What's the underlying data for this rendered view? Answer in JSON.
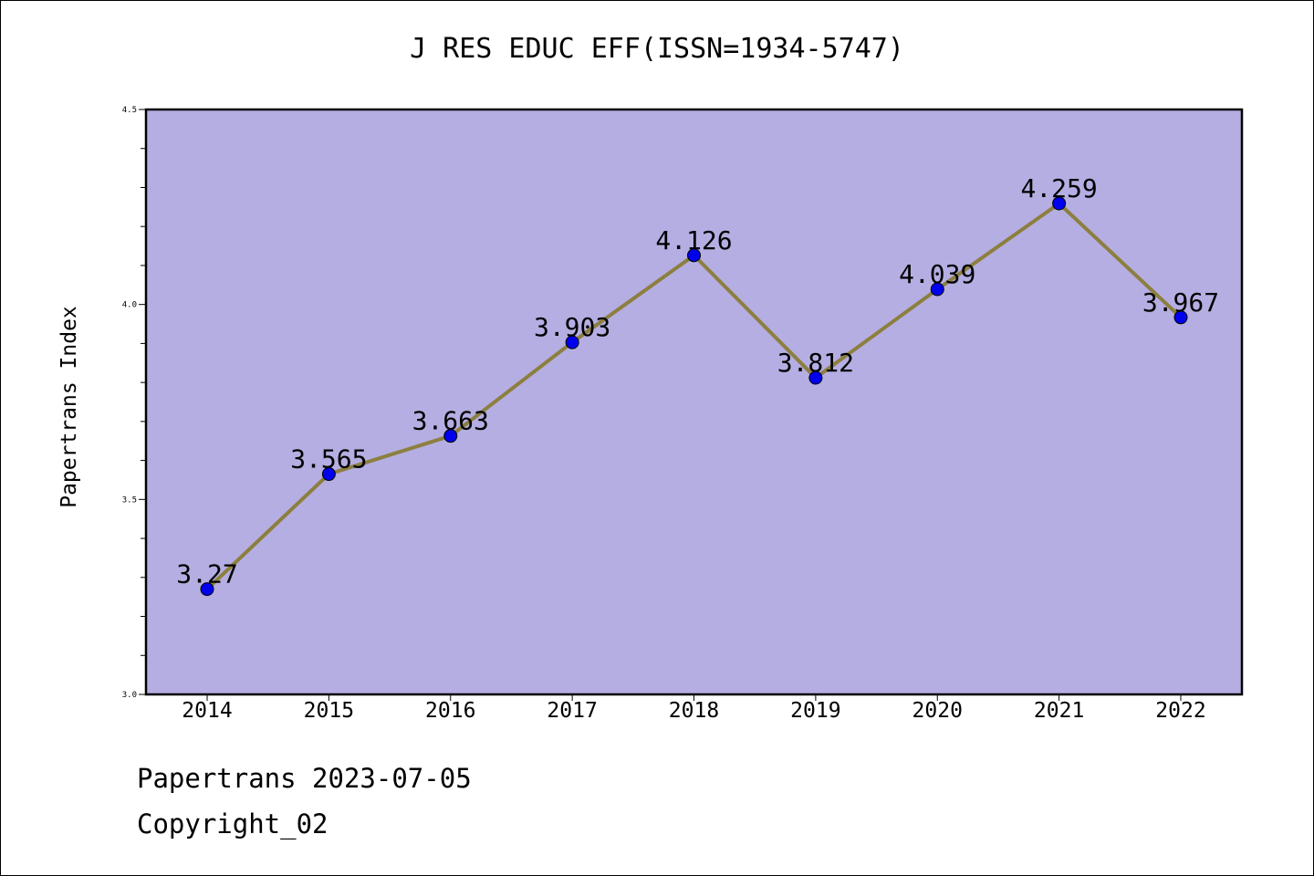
{
  "chart_data": {
    "type": "line",
    "title": "J RES EDUC EFF(ISSN=1934-5747)",
    "xlabel": "",
    "ylabel": "Papertrans Index",
    "categories": [
      "2014",
      "2015",
      "2016",
      "2017",
      "2018",
      "2019",
      "2020",
      "2021",
      "2022"
    ],
    "values": [
      3.27,
      3.565,
      3.663,
      3.903,
      4.126,
      3.812,
      4.039,
      4.259,
      3.967
    ],
    "value_labels": [
      "3.27",
      "3.565",
      "3.663",
      "3.903",
      "4.126",
      "3.812",
      "4.039",
      "4.259",
      "3.967"
    ],
    "ylim": [
      3.0,
      4.5
    ],
    "yticks": [
      "3.0",
      "3.5",
      "4.0",
      "4.5"
    ],
    "grid": false,
    "colors": {
      "plot_bg": "#b5aee2",
      "line": "#8c7f3f",
      "marker": "#0000ee"
    }
  },
  "footer": {
    "line1": "Papertrans 2023-07-05",
    "line2": "Copyright_02"
  }
}
